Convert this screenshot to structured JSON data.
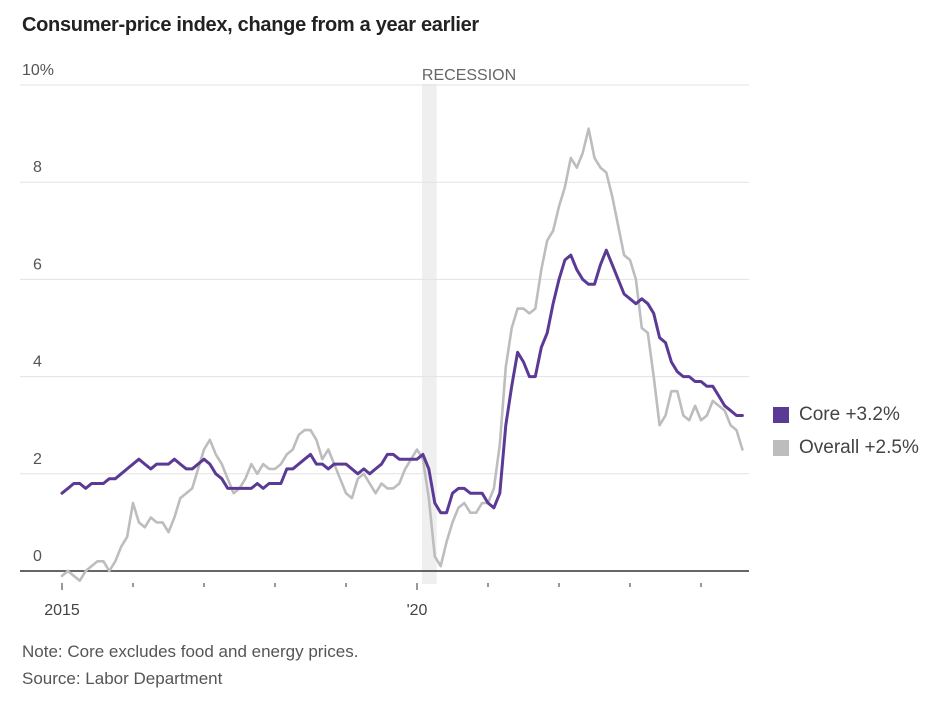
{
  "title": "Consumer-price index, change from a year earlier",
  "note": "Note: Core excludes food and energy prices.",
  "source": "Source: Labor Department",
  "colors": {
    "core": "#5b3a96",
    "overall": "#bdbdbd",
    "recession": "#efefef",
    "grid": "#e3e3e3",
    "axis": "#333333"
  },
  "legend": [
    {
      "name": "Core",
      "label": "Core +3.2%",
      "color": "#5b3a96"
    },
    {
      "name": "Overall",
      "label": "Overall +2.5%",
      "color": "#bdbdbd"
    }
  ],
  "chart_data": {
    "type": "line",
    "title": "Consumer-price index, change from a year earlier",
    "xlabel": "",
    "ylabel": "",
    "ylim": [
      0,
      10
    ],
    "yticks": [
      0,
      2,
      4,
      6,
      8,
      10
    ],
    "ytick_labels": [
      "0",
      "2",
      "4",
      "6",
      "8",
      "10%"
    ],
    "xstart": "2015-01",
    "xticks_years": [
      2015,
      2016,
      2017,
      2018,
      2019,
      2020,
      2021,
      2022,
      2023,
      2024
    ],
    "xtick_labels": {
      "2015": "2015",
      "2020": "'20"
    },
    "grid": true,
    "legend_position": "right",
    "annotations": [
      {
        "text": "RECESSION",
        "start": "2020-02",
        "end": "2020-04"
      }
    ],
    "series": [
      {
        "name": "Core",
        "unit": "% y/y",
        "values": [
          1.6,
          1.7,
          1.8,
          1.8,
          1.7,
          1.8,
          1.8,
          1.8,
          1.9,
          1.9,
          2.0,
          2.1,
          2.2,
          2.3,
          2.2,
          2.1,
          2.2,
          2.2,
          2.2,
          2.3,
          2.2,
          2.1,
          2.1,
          2.2,
          2.3,
          2.2,
          2.0,
          1.9,
          1.7,
          1.7,
          1.7,
          1.7,
          1.7,
          1.8,
          1.7,
          1.8,
          1.8,
          1.8,
          2.1,
          2.1,
          2.2,
          2.3,
          2.4,
          2.2,
          2.2,
          2.1,
          2.2,
          2.2,
          2.2,
          2.1,
          2.0,
          2.1,
          2.0,
          2.1,
          2.2,
          2.4,
          2.4,
          2.3,
          2.3,
          2.3,
          2.3,
          2.4,
          2.1,
          1.4,
          1.2,
          1.2,
          1.6,
          1.7,
          1.7,
          1.6,
          1.6,
          1.6,
          1.4,
          1.3,
          1.6,
          3.0,
          3.8,
          4.5,
          4.3,
          4.0,
          4.0,
          4.6,
          4.9,
          5.5,
          6.0,
          6.4,
          6.5,
          6.2,
          6.0,
          5.9,
          5.9,
          6.3,
          6.6,
          6.3,
          6.0,
          5.7,
          5.6,
          5.5,
          5.6,
          5.5,
          5.3,
          4.8,
          4.7,
          4.3,
          4.1,
          4.0,
          4.0,
          3.9,
          3.9,
          3.8,
          3.8,
          3.6,
          3.4,
          3.3,
          3.2,
          3.2
        ]
      },
      {
        "name": "Overall",
        "unit": "% y/y",
        "values": [
          -0.1,
          0.0,
          -0.1,
          -0.2,
          0.0,
          0.1,
          0.2,
          0.2,
          0.0,
          0.2,
          0.5,
          0.7,
          1.4,
          1.0,
          0.9,
          1.1,
          1.0,
          1.0,
          0.8,
          1.1,
          1.5,
          1.6,
          1.7,
          2.1,
          2.5,
          2.7,
          2.4,
          2.2,
          1.9,
          1.6,
          1.7,
          1.9,
          2.2,
          2.0,
          2.2,
          2.1,
          2.1,
          2.2,
          2.4,
          2.5,
          2.8,
          2.9,
          2.9,
          2.7,
          2.3,
          2.5,
          2.2,
          1.9,
          1.6,
          1.5,
          1.9,
          2.0,
          1.8,
          1.6,
          1.8,
          1.7,
          1.7,
          1.8,
          2.1,
          2.3,
          2.5,
          2.3,
          1.5,
          0.3,
          0.1,
          0.6,
          1.0,
          1.3,
          1.4,
          1.2,
          1.2,
          1.4,
          1.4,
          1.7,
          2.6,
          4.2,
          5.0,
          5.4,
          5.4,
          5.3,
          5.4,
          6.2,
          6.8,
          7.0,
          7.5,
          7.9,
          8.5,
          8.3,
          8.6,
          9.1,
          8.5,
          8.3,
          8.2,
          7.7,
          7.1,
          6.5,
          6.4,
          6.0,
          5.0,
          4.9,
          4.0,
          3.0,
          3.2,
          3.7,
          3.7,
          3.2,
          3.1,
          3.4,
          3.1,
          3.2,
          3.5,
          3.4,
          3.3,
          3.0,
          2.9,
          2.5
        ]
      }
    ]
  }
}
